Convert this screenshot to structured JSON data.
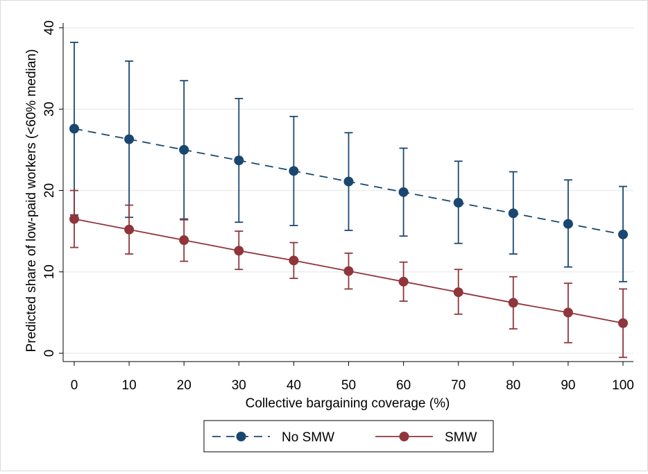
{
  "chart_data": {
    "type": "line",
    "title": "",
    "xlabel": "Collective bargaining coverage (%)",
    "ylabel": "Predicted share of low-paid workers (<60% median)",
    "xlim": [
      0,
      100
    ],
    "ylim": [
      0,
      40
    ],
    "xticks": [
      0,
      10,
      20,
      30,
      40,
      50,
      60,
      70,
      80,
      90,
      100
    ],
    "yticks": [
      0,
      10,
      20,
      30,
      40
    ],
    "grid": "horizontal",
    "legend": "bottom",
    "x": [
      0,
      10,
      20,
      30,
      40,
      50,
      60,
      70,
      80,
      90,
      100
    ],
    "series": [
      {
        "name": "No SMW",
        "color": "#1a476f",
        "line_style": "dashed",
        "values": [
          27.6,
          26.3,
          25.0,
          23.7,
          22.4,
          21.1,
          19.8,
          18.5,
          17.2,
          15.9,
          14.6
        ],
        "ci_upper": [
          38.2,
          35.9,
          33.5,
          31.3,
          29.1,
          27.1,
          25.2,
          23.6,
          22.3,
          21.3,
          20.5
        ],
        "ci_lower": [
          17.0,
          16.7,
          16.5,
          16.1,
          15.7,
          15.1,
          14.4,
          13.5,
          12.2,
          10.6,
          8.8
        ]
      },
      {
        "name": "SMW",
        "color": "#90353b",
        "line_style": "solid",
        "values": [
          16.5,
          15.2,
          13.9,
          12.6,
          11.4,
          10.1,
          8.8,
          7.5,
          6.2,
          5.0,
          3.7
        ],
        "ci_upper": [
          20.0,
          18.2,
          16.4,
          15.0,
          13.6,
          12.3,
          11.2,
          10.3,
          9.4,
          8.6,
          7.9
        ],
        "ci_lower": [
          13.0,
          12.2,
          11.3,
          10.3,
          9.2,
          7.9,
          6.4,
          4.8,
          3.0,
          1.3,
          -0.5
        ]
      }
    ]
  }
}
